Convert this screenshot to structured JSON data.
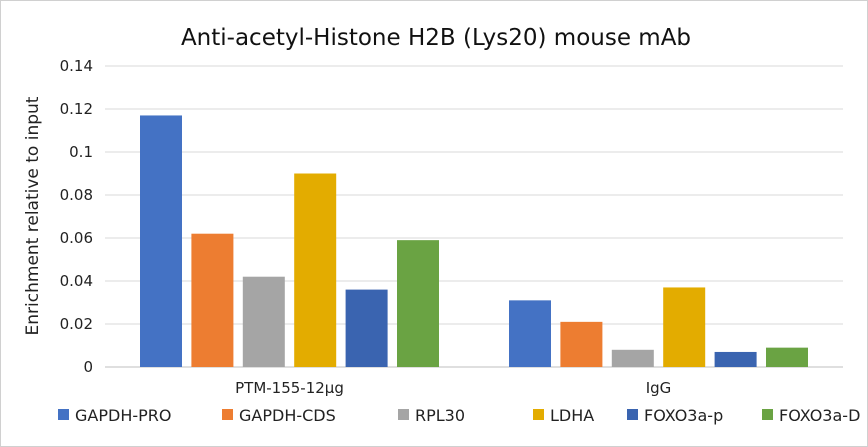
{
  "chart_data": {
    "type": "bar",
    "title": "Anti-acetyl-Histone H2B (Lys20) mouse mAb",
    "xlabel": "",
    "ylabel": "Enrichment relative to input",
    "ylim": [
      0,
      0.14
    ],
    "yticks": [
      "0",
      "0.02",
      "0.04",
      "0.06",
      "0.08",
      "0.1",
      "0.12",
      "0.14"
    ],
    "grid": true,
    "legend": "bottom",
    "categories": [
      "PTM-155-12μg",
      "IgG"
    ],
    "series": [
      {
        "name": "GAPDH-PRO",
        "color": "#4472C4",
        "values": [
          0.117,
          0.031
        ]
      },
      {
        "name": "GAPDH-CDS",
        "color": "#ED7D31",
        "values": [
          0.062,
          0.021
        ]
      },
      {
        "name": "RPL30",
        "color": "#A5A5A5",
        "values": [
          0.042,
          0.008
        ]
      },
      {
        "name": "LDHA",
        "color": "#E3AC00",
        "values": [
          0.09,
          0.037
        ]
      },
      {
        "name": "FOXO3a-p",
        "color": "#3A64B0",
        "values": [
          0.036,
          0.007
        ]
      },
      {
        "name": "FOXO3a-D",
        "color": "#6AA343",
        "values": [
          0.059,
          0.009
        ]
      }
    ]
  }
}
